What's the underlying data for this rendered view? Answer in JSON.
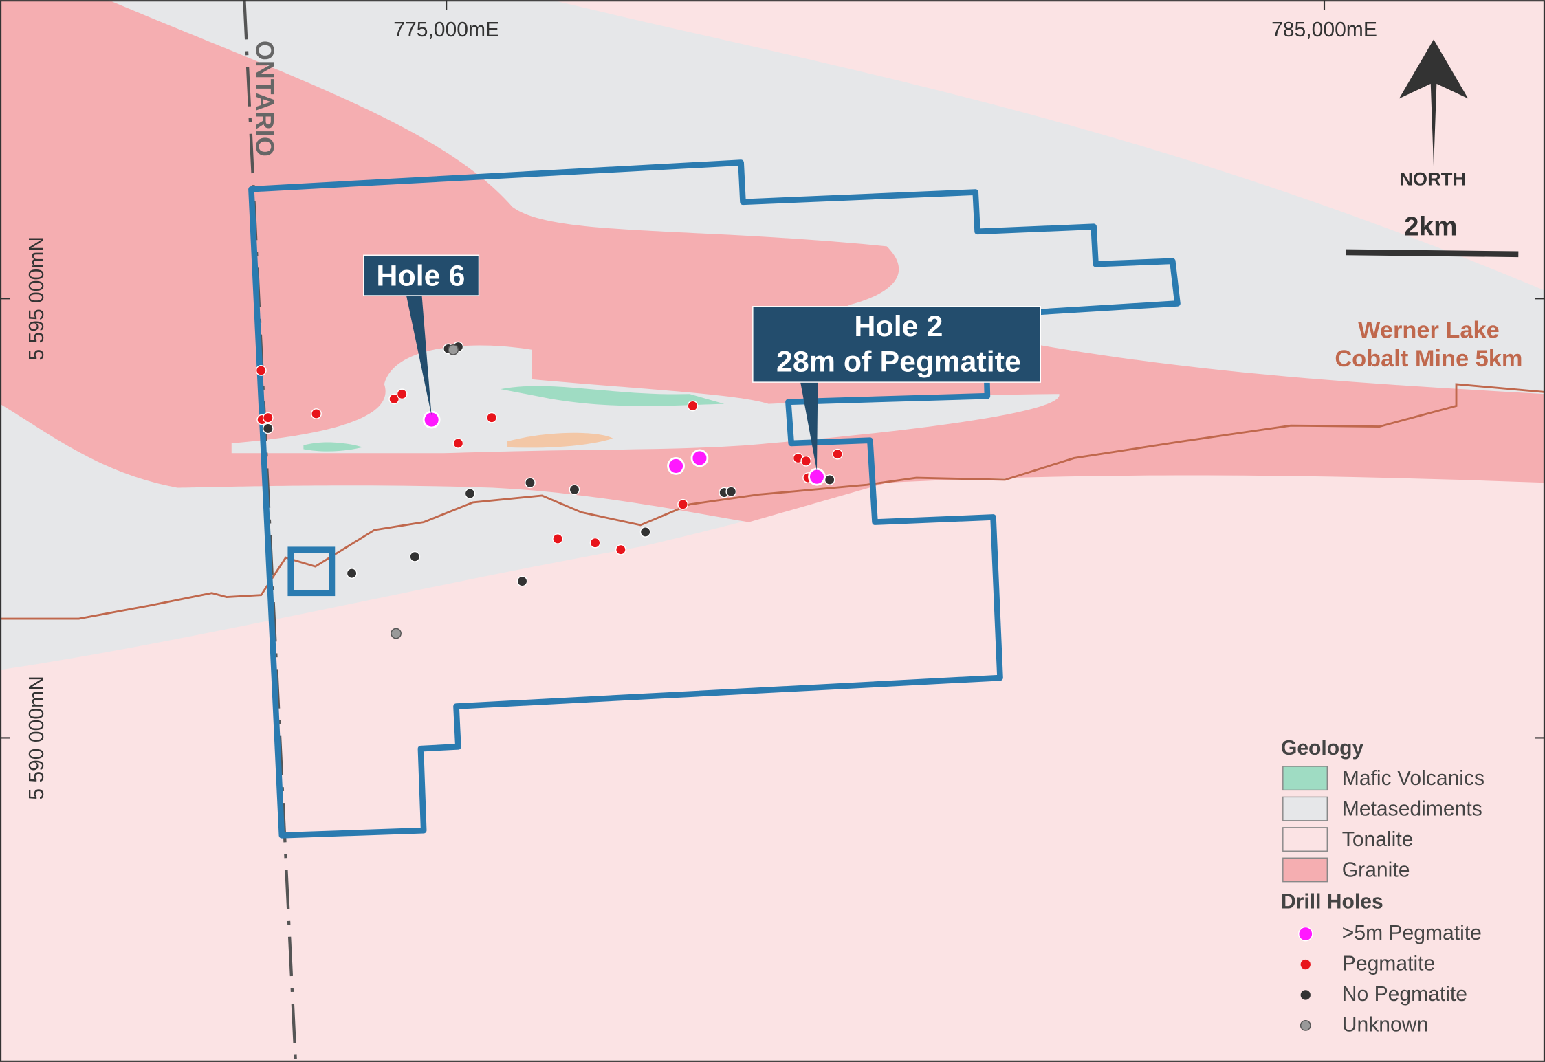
{
  "grid_labels": {
    "easting": [
      "775,000mE",
      "785,000mE"
    ],
    "northing": [
      "5 595 000mN",
      "5 590 000mN"
    ]
  },
  "province_label": "ONTARIO",
  "north_arrow": "NORTH",
  "scale_bar": "2km",
  "callouts": [
    {
      "label": "Hole 6"
    },
    {
      "label": "Hole 2",
      "sublabel": "28m of Pegmatite"
    }
  ],
  "annotation": {
    "line1": "Werner Lake",
    "line2": "Cobalt Mine 5km"
  },
  "legend": {
    "geology_title": "Geology",
    "geology": [
      "Mafic Volcanics",
      "Metasediments",
      "Tonalite",
      "Granite"
    ],
    "drill_title": "Drill Holes",
    "drill": [
      ">5m Pegmatite",
      "Pegmatite",
      "No Pegmatite",
      "Unknown"
    ]
  }
}
